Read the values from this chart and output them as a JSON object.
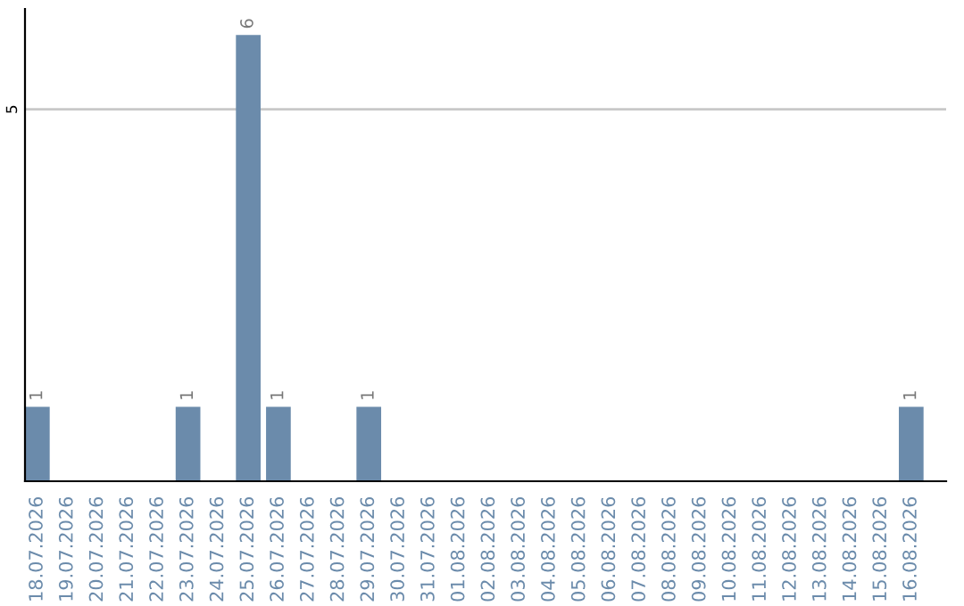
{
  "chart_data": {
    "type": "bar",
    "categories": [
      "18.07.2026",
      "19.07.2026",
      "20.07.2026",
      "21.07.2026",
      "22.07.2026",
      "23.07.2026",
      "24.07.2026",
      "25.07.2026",
      "26.07.2026",
      "27.07.2026",
      "28.07.2026",
      "29.07.2026",
      "30.07.2026",
      "31.07.2026",
      "01.08.2026",
      "02.08.2026",
      "03.08.2026",
      "04.08.2026",
      "05.08.2026",
      "06.08.2026",
      "07.08.2026",
      "08.08.2026",
      "09.08.2026",
      "10.08.2026",
      "11.08.2026",
      "12.08.2026",
      "13.08.2026",
      "14.08.2026",
      "15.08.2026",
      "16.08.2026"
    ],
    "values": [
      1,
      0,
      0,
      0,
      0,
      1,
      0,
      6,
      1,
      0,
      0,
      1,
      0,
      0,
      0,
      0,
      0,
      0,
      0,
      0,
      0,
      0,
      0,
      0,
      0,
      0,
      0,
      0,
      0,
      1
    ],
    "value_labels": [
      "1",
      null,
      null,
      null,
      null,
      "1",
      null,
      "6",
      "1",
      null,
      null,
      "1",
      null,
      null,
      null,
      null,
      null,
      null,
      null,
      null,
      null,
      null,
      null,
      null,
      null,
      null,
      null,
      null,
      null,
      "1"
    ],
    "color": "#6b8bab",
    "ylim": [
      0,
      6.35
    ],
    "yticks": [
      5
    ],
    "grid": "y",
    "legend": false
  }
}
